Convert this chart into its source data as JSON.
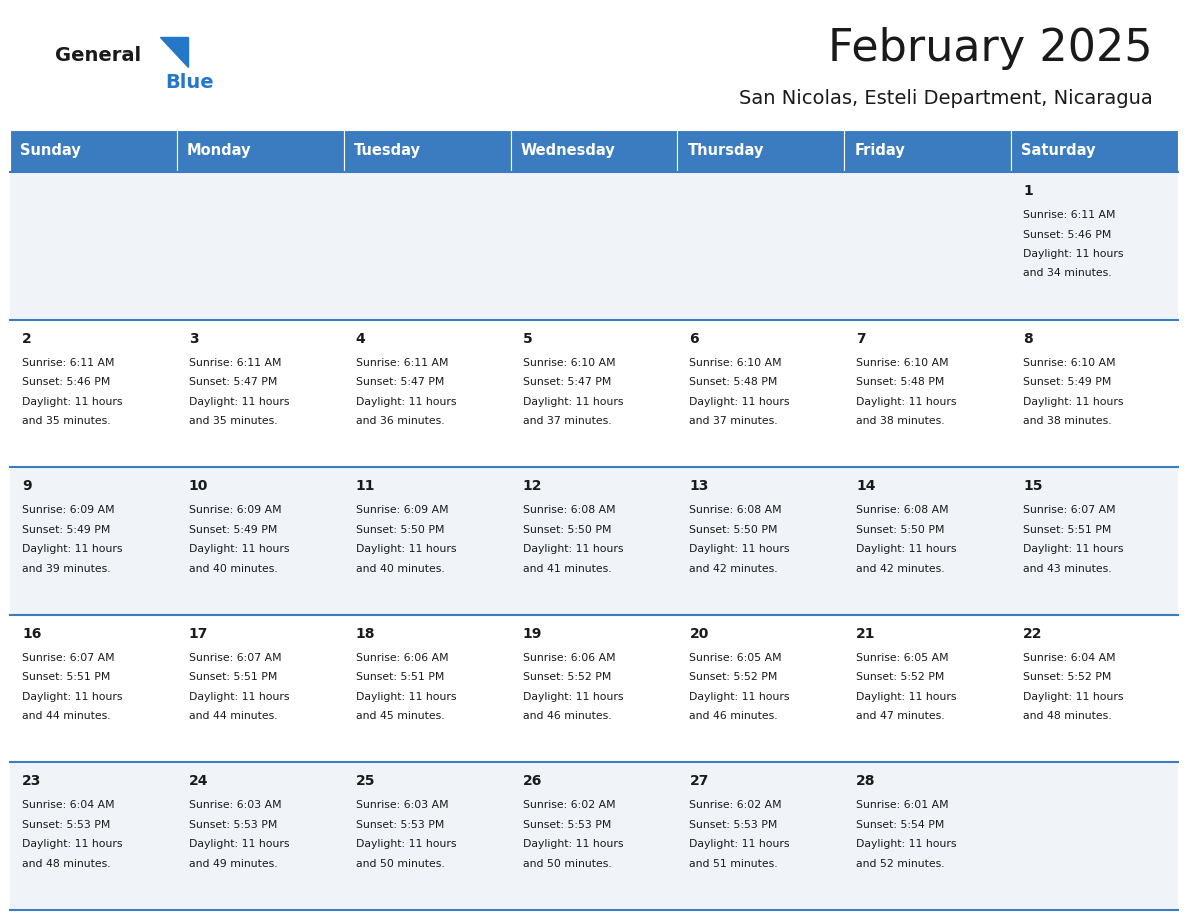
{
  "title": "February 2025",
  "subtitle": "San Nicolas, Esteli Department, Nicaragua",
  "header_bg_color": "#3a7cbf",
  "header_text_color": "#ffffff",
  "day_names": [
    "Sunday",
    "Monday",
    "Tuesday",
    "Wednesday",
    "Thursday",
    "Friday",
    "Saturday"
  ],
  "row0_bg": "#f0f4f8",
  "row1_bg": "#ffffff",
  "cell_border_color": "#3a7cbf",
  "day_num_color": "#1a1a1a",
  "info_text_color": "#1a1a1a",
  "logo_general_color": "#1a1a1a",
  "logo_blue_color": "#2577c8",
  "calendar_data": [
    [
      null,
      null,
      null,
      null,
      null,
      null,
      {
        "day": 1,
        "sunrise": "6:11 AM",
        "sunset": "5:46 PM",
        "daylight": "11 hours and 34 minutes."
      }
    ],
    [
      {
        "day": 2,
        "sunrise": "6:11 AM",
        "sunset": "5:46 PM",
        "daylight": "11 hours and 35 minutes."
      },
      {
        "day": 3,
        "sunrise": "6:11 AM",
        "sunset": "5:47 PM",
        "daylight": "11 hours and 35 minutes."
      },
      {
        "day": 4,
        "sunrise": "6:11 AM",
        "sunset": "5:47 PM",
        "daylight": "11 hours and 36 minutes."
      },
      {
        "day": 5,
        "sunrise": "6:10 AM",
        "sunset": "5:47 PM",
        "daylight": "11 hours and 37 minutes."
      },
      {
        "day": 6,
        "sunrise": "6:10 AM",
        "sunset": "5:48 PM",
        "daylight": "11 hours and 37 minutes."
      },
      {
        "day": 7,
        "sunrise": "6:10 AM",
        "sunset": "5:48 PM",
        "daylight": "11 hours and 38 minutes."
      },
      {
        "day": 8,
        "sunrise": "6:10 AM",
        "sunset": "5:49 PM",
        "daylight": "11 hours and 38 minutes."
      }
    ],
    [
      {
        "day": 9,
        "sunrise": "6:09 AM",
        "sunset": "5:49 PM",
        "daylight": "11 hours and 39 minutes."
      },
      {
        "day": 10,
        "sunrise": "6:09 AM",
        "sunset": "5:49 PM",
        "daylight": "11 hours and 40 minutes."
      },
      {
        "day": 11,
        "sunrise": "6:09 AM",
        "sunset": "5:50 PM",
        "daylight": "11 hours and 40 minutes."
      },
      {
        "day": 12,
        "sunrise": "6:08 AM",
        "sunset": "5:50 PM",
        "daylight": "11 hours and 41 minutes."
      },
      {
        "day": 13,
        "sunrise": "6:08 AM",
        "sunset": "5:50 PM",
        "daylight": "11 hours and 42 minutes."
      },
      {
        "day": 14,
        "sunrise": "6:08 AM",
        "sunset": "5:50 PM",
        "daylight": "11 hours and 42 minutes."
      },
      {
        "day": 15,
        "sunrise": "6:07 AM",
        "sunset": "5:51 PM",
        "daylight": "11 hours and 43 minutes."
      }
    ],
    [
      {
        "day": 16,
        "sunrise": "6:07 AM",
        "sunset": "5:51 PM",
        "daylight": "11 hours and 44 minutes."
      },
      {
        "day": 17,
        "sunrise": "6:07 AM",
        "sunset": "5:51 PM",
        "daylight": "11 hours and 44 minutes."
      },
      {
        "day": 18,
        "sunrise": "6:06 AM",
        "sunset": "5:51 PM",
        "daylight": "11 hours and 45 minutes."
      },
      {
        "day": 19,
        "sunrise": "6:06 AM",
        "sunset": "5:52 PM",
        "daylight": "11 hours and 46 minutes."
      },
      {
        "day": 20,
        "sunrise": "6:05 AM",
        "sunset": "5:52 PM",
        "daylight": "11 hours and 46 minutes."
      },
      {
        "day": 21,
        "sunrise": "6:05 AM",
        "sunset": "5:52 PM",
        "daylight": "11 hours and 47 minutes."
      },
      {
        "day": 22,
        "sunrise": "6:04 AM",
        "sunset": "5:52 PM",
        "daylight": "11 hours and 48 minutes."
      }
    ],
    [
      {
        "day": 23,
        "sunrise": "6:04 AM",
        "sunset": "5:53 PM",
        "daylight": "11 hours and 48 minutes."
      },
      {
        "day": 24,
        "sunrise": "6:03 AM",
        "sunset": "5:53 PM",
        "daylight": "11 hours and 49 minutes."
      },
      {
        "day": 25,
        "sunrise": "6:03 AM",
        "sunset": "5:53 PM",
        "daylight": "11 hours and 50 minutes."
      },
      {
        "day": 26,
        "sunrise": "6:02 AM",
        "sunset": "5:53 PM",
        "daylight": "11 hours and 50 minutes."
      },
      {
        "day": 27,
        "sunrise": "6:02 AM",
        "sunset": "5:53 PM",
        "daylight": "11 hours and 51 minutes."
      },
      {
        "day": 28,
        "sunrise": "6:01 AM",
        "sunset": "5:54 PM",
        "daylight": "11 hours and 52 minutes."
      },
      null
    ]
  ],
  "fig_width": 11.88,
  "fig_height": 9.18,
  "dpi": 100
}
